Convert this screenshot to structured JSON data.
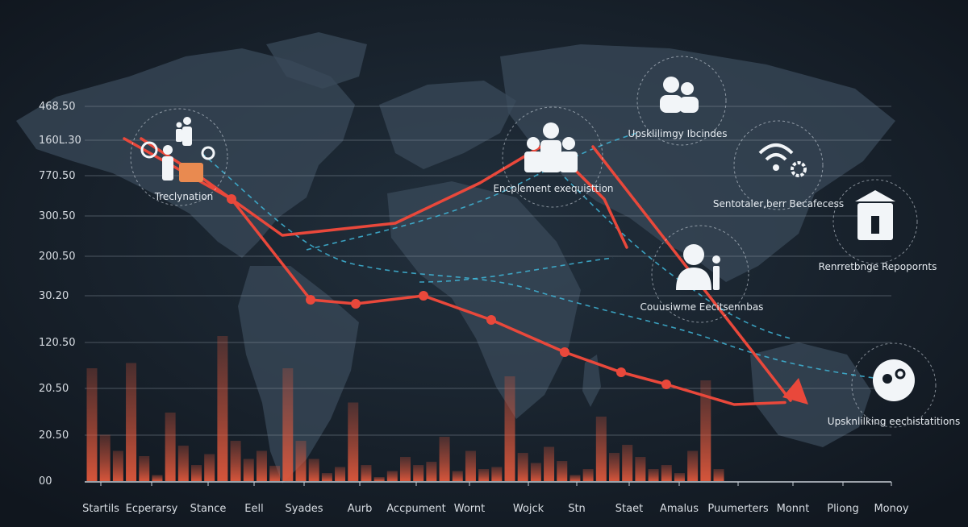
{
  "colors": {
    "background": "#141c26",
    "map": "#3a4a5a",
    "bars": "#e0583c",
    "line": "#e9483b",
    "dashed": "#3fb6d8",
    "text": "#d8dde3"
  },
  "chart_data": {
    "type": "bar",
    "title": "",
    "xlabel": "",
    "ylabel": "",
    "legend": "none",
    "grid": true,
    "y_tick_labels": [
      "00",
      "20.50",
      "20.50",
      "120.50",
      "30.20",
      "200.50",
      "300.50",
      "770.50",
      "160L.30",
      "468.50"
    ],
    "categories": [
      "Startils",
      "Ecperarsy",
      "Stance",
      "Eell",
      "Syades",
      "Aurb",
      "Accpument",
      "Wornt",
      "Wojck",
      "Stn",
      "Staet",
      "Amalus",
      "Puumerters",
      "Monnt",
      "Pliong",
      "Monoy"
    ],
    "bars": [
      2.8,
      1.15,
      0.75,
      2.93,
      0.62,
      0.15,
      1.7,
      0.88,
      0.4,
      0.67,
      3.6,
      1.0,
      0.55,
      0.75,
      0.38,
      2.8,
      1.0,
      0.55,
      0.2,
      0.35,
      1.95,
      0.4,
      0.1,
      0.25,
      0.6,
      0.4,
      0.48,
      1.1,
      0.25,
      0.75,
      0.3,
      0.35,
      2.6,
      0.7,
      0.45,
      0.85,
      0.5,
      0.15,
      0.3,
      1.6,
      0.7,
      0.9,
      0.6,
      0.3,
      0.4,
      0.2,
      0.75,
      2.5,
      0.3
    ],
    "line_series": [
      {
        "x": [
          1.0,
          2.0,
          3.5,
          5.5,
          7.0,
          8.2,
          9.2,
          9.6
        ],
        "y": [
          8.5,
          7.6,
          6.1,
          6.4,
          7.4,
          8.4,
          7.0,
          5.8
        ]
      },
      {
        "x": [
          0.7,
          2.6,
          4.0,
          4.8,
          6.0,
          7.2,
          8.5,
          9.5,
          10.3,
          11.5,
          12.4
        ],
        "y": [
          8.5,
          7.0,
          4.5,
          4.4,
          4.6,
          4.0,
          3.2,
          2.7,
          2.4,
          1.9,
          1.95
        ]
      },
      {
        "x": [
          9.0,
          12.5
        ],
        "y": [
          8.3,
          2.0
        ]
      }
    ],
    "annotations": [
      {
        "label": "Treclynation"
      },
      {
        "label": "Encplement exequisttion"
      },
      {
        "label": "Upsklilimgy Ibcindes"
      },
      {
        "label": "Sentotaler,berr Becafecess"
      },
      {
        "label": "Renrretbnge Repopornts"
      },
      {
        "label": "Couusiwme Eecitsennbas"
      },
      {
        "label": "Upsknlilking eechistatitions"
      }
    ]
  }
}
